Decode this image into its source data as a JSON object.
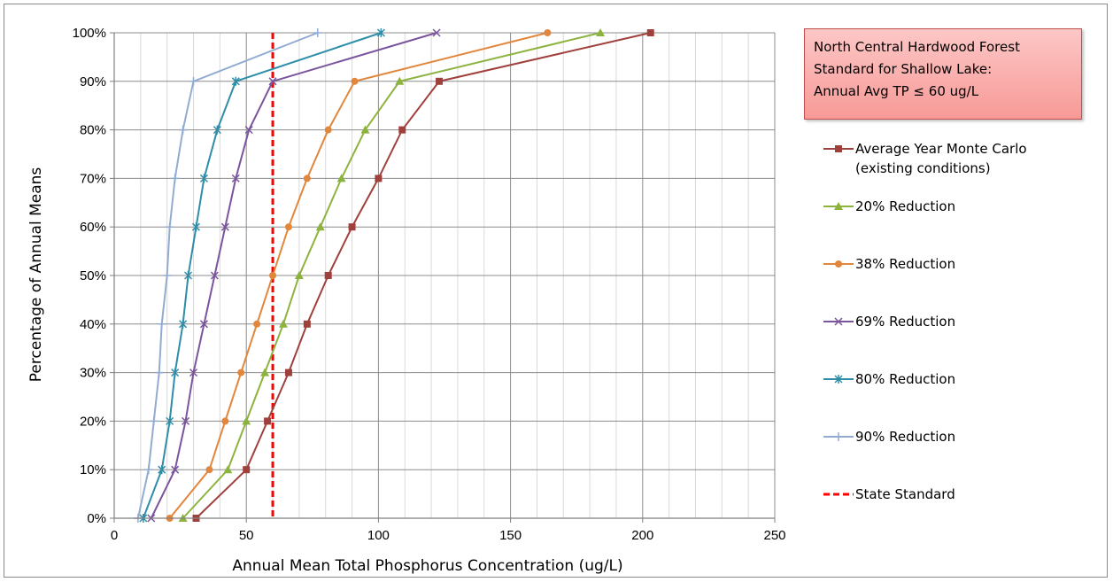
{
  "chart_data": {
    "type": "line",
    "xlabel": "Annual Mean Total Phosphorus Concentration (ug/L)",
    "ylabel": "Percentage of Annual Means",
    "xlim": [
      0,
      250
    ],
    "ylim": [
      0,
      100
    ],
    "x_ticks": [
      "0",
      "50",
      "100",
      "150",
      "200",
      "250"
    ],
    "y_ticks": [
      "0%",
      "10%",
      "20%",
      "30%",
      "40%",
      "50%",
      "60%",
      "70%",
      "80%",
      "90%",
      "100%"
    ],
    "y_values": [
      0,
      10,
      20,
      30,
      40,
      50,
      60,
      70,
      80,
      90,
      100
    ],
    "grid": "major and minor vertical, major horizontal",
    "legend_position": "right",
    "annotation": {
      "lines": [
        "North Central Hardwood Forest",
        "Standard for Shallow Lake:",
        "Annual Avg TP ≤ 60 ug/L"
      ]
    },
    "series": [
      {
        "name_lines": [
          "Average Year Monte Carlo",
          "(existing conditions)"
        ],
        "color": "#a0403c",
        "marker": "square",
        "x": [
          31,
          50,
          58,
          66,
          73,
          81,
          90,
          100,
          109,
          123,
          203
        ]
      },
      {
        "name_lines": [
          "20% Reduction"
        ],
        "color": "#8db33f",
        "marker": "triangle",
        "x": [
          26,
          43,
          50,
          57,
          64,
          70,
          78,
          86,
          95,
          108,
          184
        ]
      },
      {
        "name_lines": [
          "38% Reduction"
        ],
        "color": "#e2863b",
        "marker": "circle",
        "x": [
          21,
          36,
          42,
          48,
          54,
          60,
          66,
          73,
          81,
          91,
          164
        ]
      },
      {
        "name_lines": [
          "69% Reduction"
        ],
        "color": "#7a549c",
        "marker": "x",
        "x": [
          14,
          23,
          27,
          30,
          34,
          38,
          42,
          46,
          51,
          60,
          122
        ]
      },
      {
        "name_lines": [
          "80% Reduction"
        ],
        "color": "#2e8ea8",
        "marker": "star",
        "x": [
          11,
          18,
          21,
          23,
          26,
          28,
          31,
          34,
          39,
          46,
          101
        ]
      },
      {
        "name_lines": [
          "90% Reduction"
        ],
        "color": "#92acd1",
        "marker": "plus",
        "x": [
          9,
          13,
          15,
          17,
          18,
          20,
          21,
          23,
          26,
          30,
          77
        ]
      }
    ],
    "reference_line": {
      "name": "State Standard",
      "x": 60,
      "color": "#ff0000",
      "style": "dashed"
    }
  }
}
